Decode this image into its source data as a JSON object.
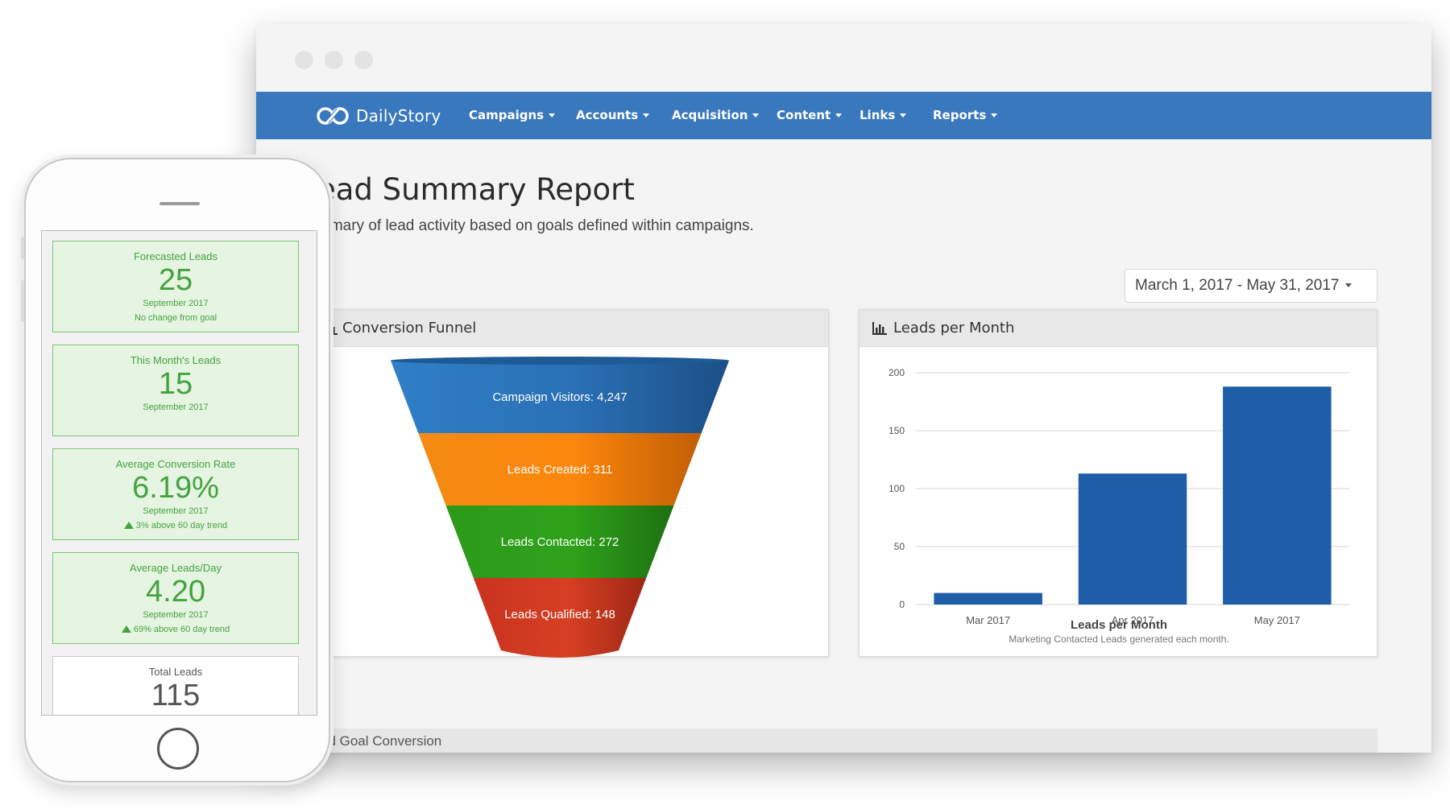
{
  "navbar": {
    "brand": "DailyStory",
    "items": [
      {
        "label": "Campaigns"
      },
      {
        "label": "Accounts"
      },
      {
        "label": "Acquisition"
      },
      {
        "label": "Content"
      },
      {
        "label": "Links"
      },
      {
        "label": "Reports"
      }
    ]
  },
  "page": {
    "title": "ead Summary Report",
    "subtitle": "mmary of lead activity based on goals defined within campaigns.",
    "date_range": "March 1, 2017 - May 31, 2017"
  },
  "funnel_panel": {
    "title": "Conversion Funnel",
    "stages": [
      {
        "label": "Campaign Visitors: 4,247",
        "color": "#2a70b5"
      },
      {
        "label": "Leads Created: 311",
        "color": "#f4850e"
      },
      {
        "label": "Leads Contacted: 272",
        "color": "#2b9a1a"
      },
      {
        "label": "Leads Qualified: 148",
        "color": "#d23a22"
      }
    ]
  },
  "bar_panel": {
    "title": "Leads per Month"
  },
  "chart_data": {
    "type": "bar",
    "title": "Leads per Month",
    "subtitle": "Marketing Contacted Leads generated each month.",
    "categories": [
      "Mar 2017",
      "Apr 2017",
      "May 2017"
    ],
    "values": [
      10,
      113,
      188
    ],
    "ylim": [
      0,
      200
    ],
    "yticks": [
      "200",
      "150",
      "100",
      "50",
      "0"
    ],
    "ytick_values": [
      200,
      150,
      100,
      50,
      0
    ],
    "bar_color": "#1e5ea8",
    "grid": true
  },
  "bottom_panel": {
    "title": "ad Goal Conversion"
  },
  "phone": {
    "metrics": [
      {
        "label": "Forecasted Leads",
        "value": "25",
        "sub": "September 2017",
        "note": "No change from goal"
      },
      {
        "label": "This Month's Leads",
        "value": "15",
        "sub": "September 2017"
      },
      {
        "label": "Average Conversion Rate",
        "value": "6.19%",
        "sub": "September 2017",
        "note": "3% above 60 day trend"
      },
      {
        "label": "Average Leads/Day",
        "value": "4.20",
        "sub": "September 2017",
        "note": "69% above 60 day trend"
      },
      {
        "label": "Total Leads",
        "value": "115"
      }
    ]
  },
  "colors": {
    "navbar": "#3a78be",
    "metric_green": "#43a33f"
  }
}
